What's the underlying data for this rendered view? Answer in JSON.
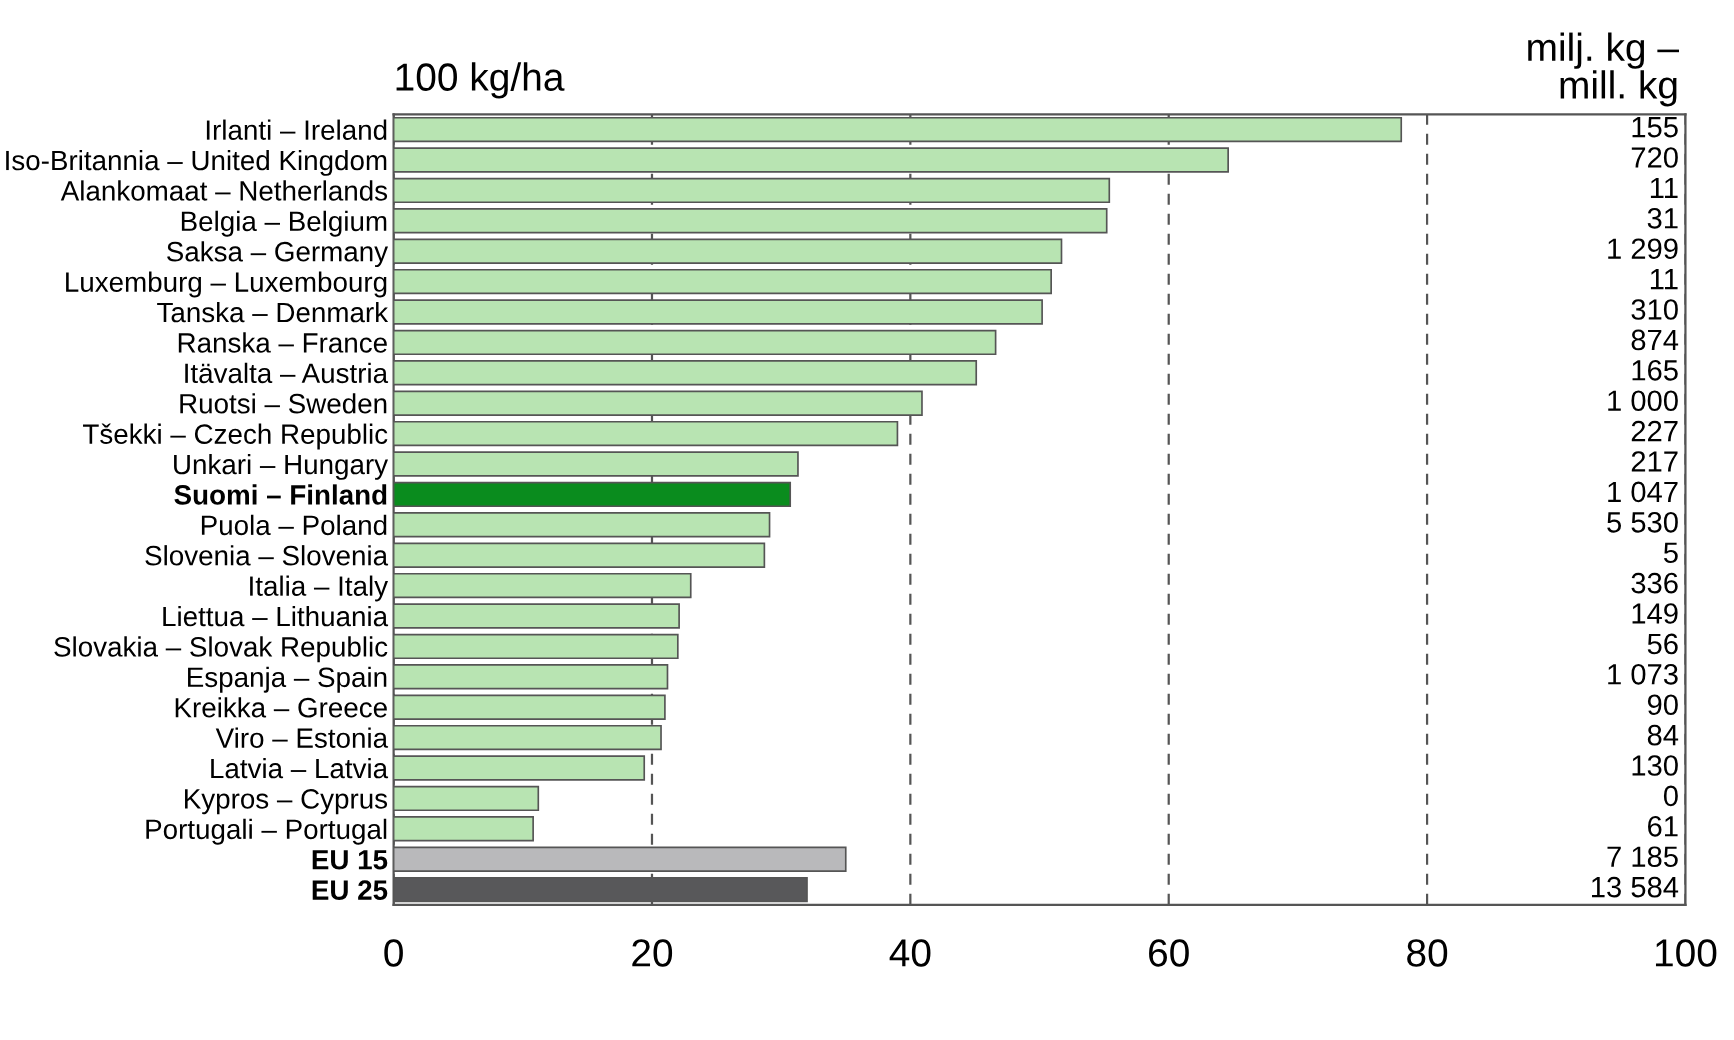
{
  "chart_data": {
    "type": "bar",
    "orientation": "horizontal",
    "xlabel": "100 kg/ha",
    "y2label": "milj. kg –\nmill. kg",
    "categories": [
      "Irlanti – Ireland",
      "Iso-Britannia – United Kingdom",
      "Alankomaat – Netherlands",
      "Belgia – Belgium",
      "Saksa – Germany",
      "Luxemburg – Luxembourg",
      "Tanska – Denmark",
      "Ranska – France",
      "Itävalta – Austria",
      "Ruotsi – Sweden",
      "Tšekki – Czech Republic",
      "Unkari – Hungary",
      "Suomi – Finland",
      "Puola – Poland",
      "Slovenia – Slovenia",
      "Italia – Italy",
      "Liettua – Lithuania",
      "Slovakia – Slovak Republic",
      "Espanja – Spain",
      "Kreikka – Greece",
      "Viro – Estonia",
      "Latvia – Latvia",
      "Kypros – Cyprus",
      "Portugali – Portugal",
      "EU 15",
      "EU 25"
    ],
    "values": [
      78,
      64.6,
      55.4,
      55.2,
      51.7,
      50.9,
      50.2,
      46.6,
      45.1,
      40.9,
      39.0,
      31.3,
      30.7,
      29.1,
      28.7,
      23.0,
      22.1,
      22.0,
      21.2,
      21.0,
      20.7,
      19.4,
      11.2,
      10.8,
      35.0,
      32.0
    ],
    "colors": [
      "#b8e4b2",
      "#b8e4b2",
      "#b8e4b2",
      "#b8e4b2",
      "#b8e4b2",
      "#b8e4b2",
      "#b8e4b2",
      "#b8e4b2",
      "#b8e4b2",
      "#b8e4b2",
      "#b8e4b2",
      "#b8e4b2",
      "#0a8c1e",
      "#b8e4b2",
      "#b8e4b2",
      "#b8e4b2",
      "#b8e4b2",
      "#b8e4b2",
      "#b8e4b2",
      "#b8e4b2",
      "#b8e4b2",
      "#b8e4b2",
      "#b8e4b2",
      "#b8e4b2",
      "#b9b9bb",
      "#58585a"
    ],
    "y2_categories": [
      "155",
      "720",
      "11",
      "31",
      "1 299",
      "11",
      "310",
      "874",
      "165",
      "1 000",
      "227",
      "217",
      "1 047",
      "5 530",
      "5",
      "336",
      "149",
      "56",
      "1 073",
      "90",
      "84",
      "130",
      "0",
      "61",
      "7 185",
      "13 584"
    ],
    "xlim": [
      0,
      100
    ],
    "xticks": [
      0,
      20,
      40,
      60,
      80,
      100
    ],
    "grid": "x"
  }
}
